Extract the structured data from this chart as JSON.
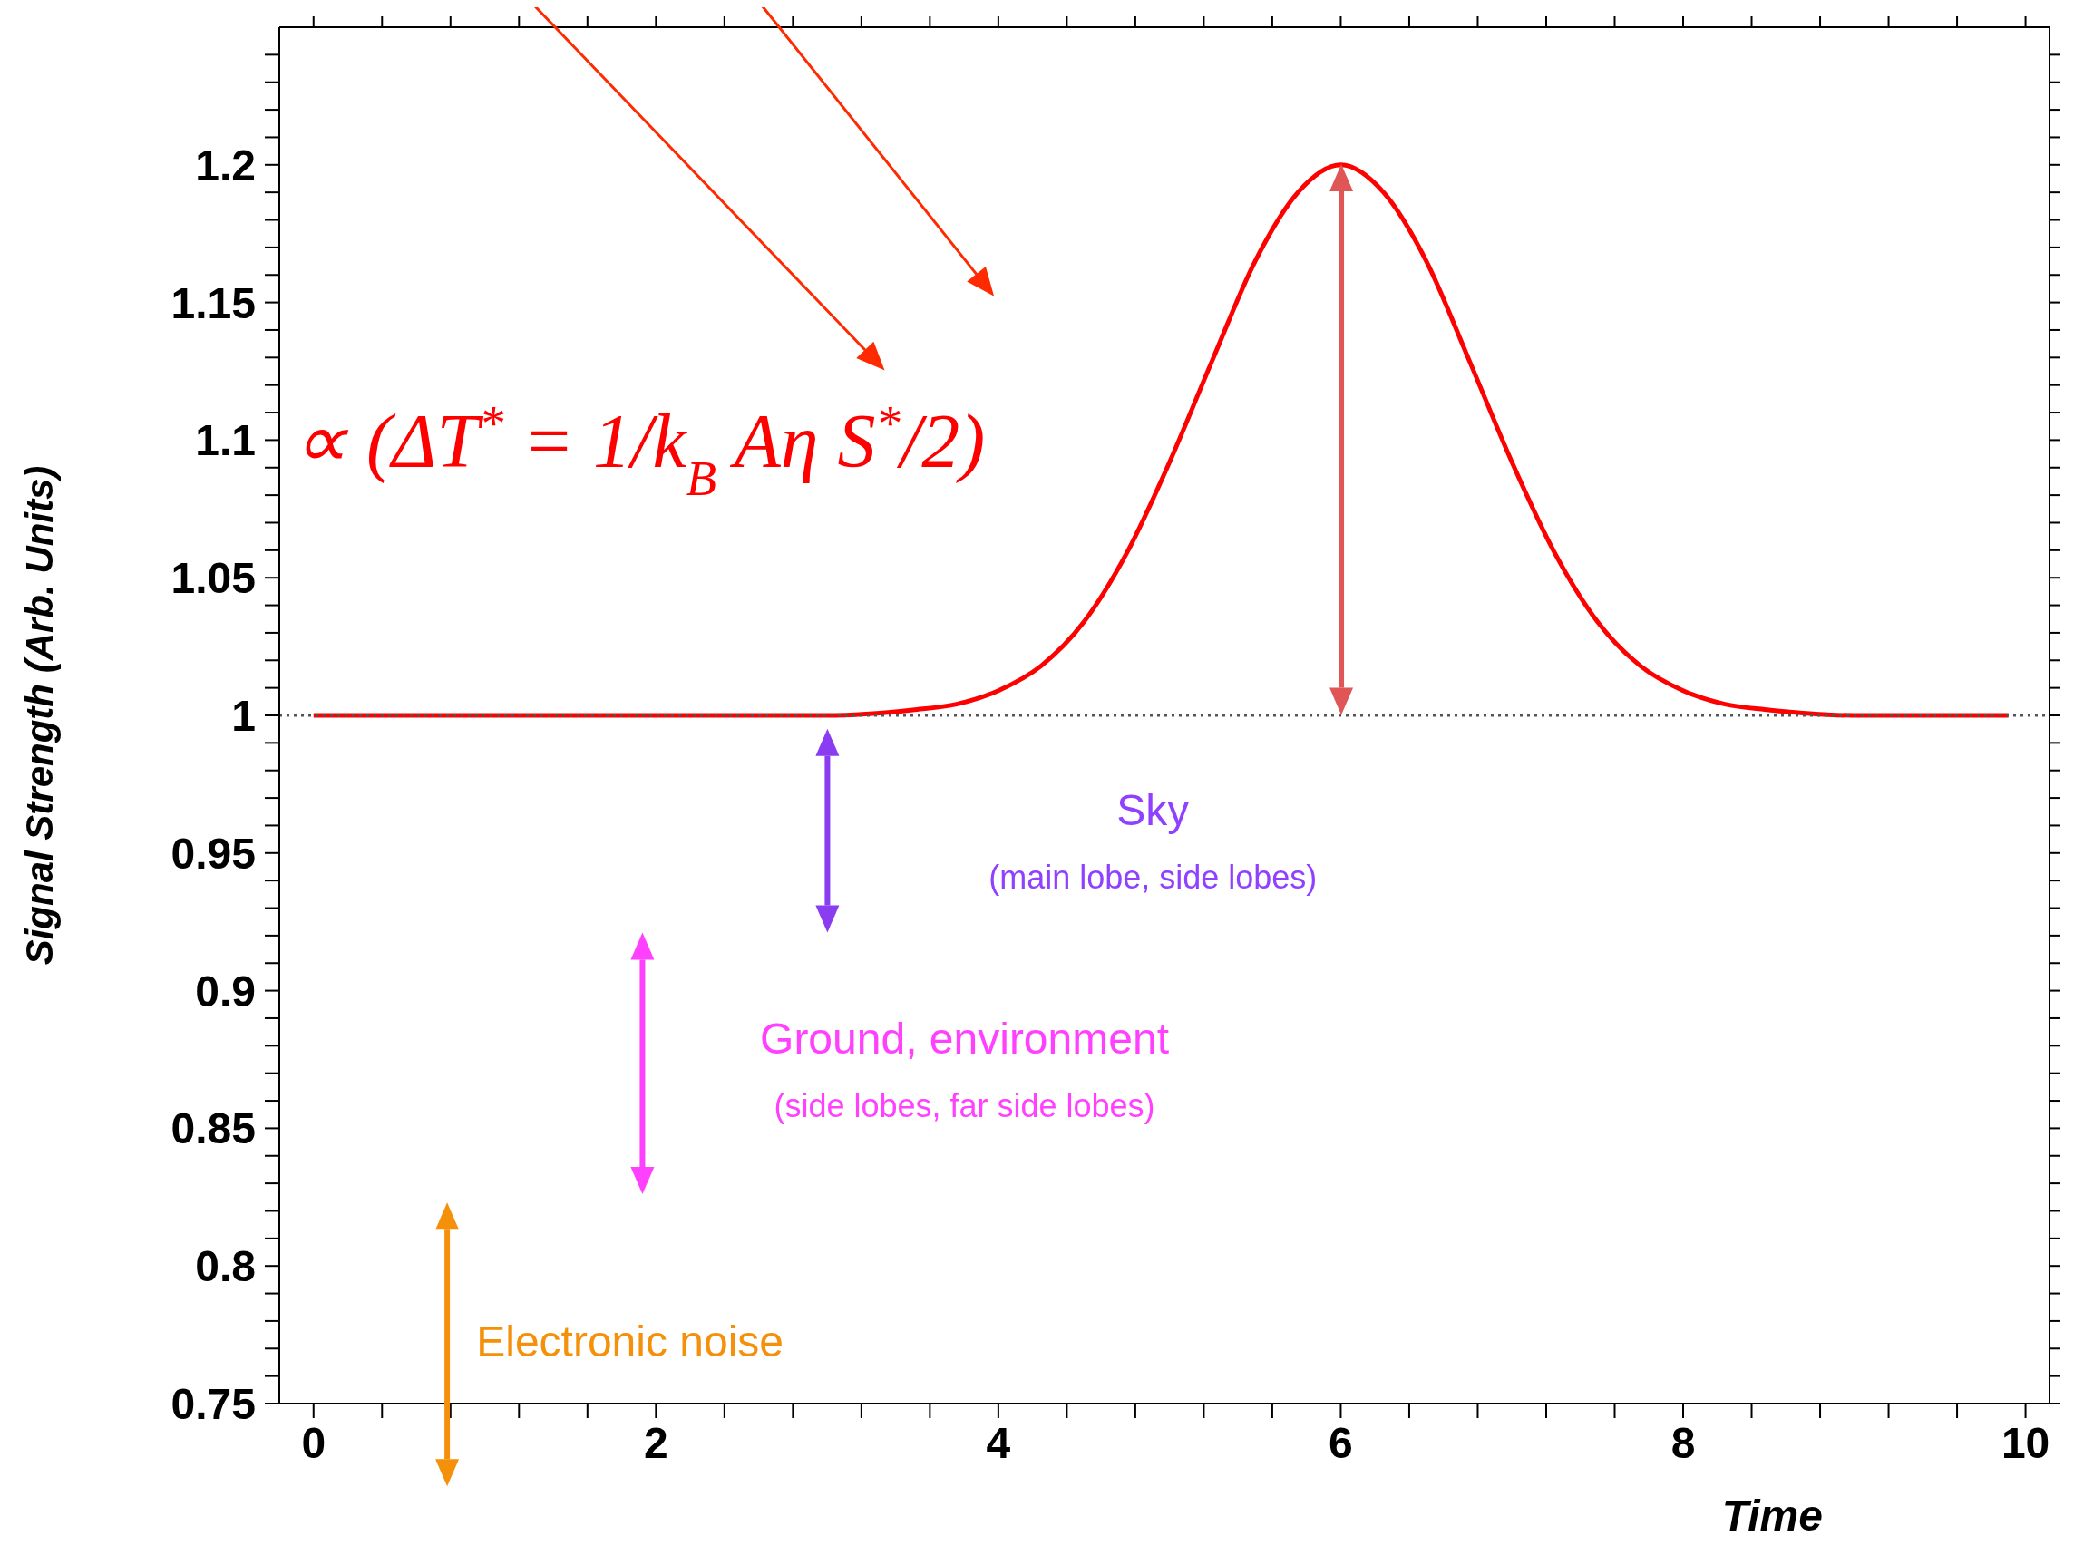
{
  "chart_data": {
    "type": "line",
    "xlabel": "Time",
    "ylabel": "Signal Strength (Arb. Units)",
    "x": [
      0,
      1,
      2,
      3,
      3.5,
      3.75,
      4,
      4.25,
      4.5,
      4.75,
      5,
      5.25,
      5.5,
      5.75,
      6,
      6.25,
      6.5,
      6.75,
      7,
      7.25,
      7.5,
      7.75,
      8,
      8.25,
      8.5,
      9,
      9.9
    ],
    "values": [
      1,
      1,
      1,
      1,
      1.002,
      1.004,
      1.009,
      1.018,
      1.034,
      1.059,
      1.092,
      1.129,
      1.165,
      1.19,
      1.2,
      1.19,
      1.165,
      1.129,
      1.092,
      1.059,
      1.034,
      1.018,
      1.009,
      1.004,
      1.002,
      1,
      1
    ],
    "color": "#ff0000",
    "xlim": [
      -0.2,
      10.14
    ],
    "ylim": [
      0.75,
      1.25
    ],
    "xticks": [
      0,
      {
        "value": 0.4,
        "label": null
      },
      {
        "value": 0.8,
        "label": null
      },
      {
        "value": 1.2,
        "label": null
      },
      {
        "value": 1.6,
        "label": null
      },
      2,
      {
        "value": 2.4,
        "label": null
      },
      {
        "value": 2.8,
        "label": null
      },
      {
        "value": 3.2,
        "label": null
      },
      {
        "value": 3.6,
        "label": null
      },
      4,
      {
        "value": 4.4,
        "label": null
      },
      {
        "value": 4.8,
        "label": null
      },
      {
        "value": 5.2,
        "label": null
      },
      {
        "value": 5.6,
        "label": null
      },
      6,
      {
        "value": 6.4,
        "label": null
      },
      {
        "value": 6.8,
        "label": null
      },
      {
        "value": 7.2,
        "label": null
      },
      {
        "value": 7.6,
        "label": null
      },
      8,
      {
        "value": 8.4,
        "label": null
      },
      {
        "value": 8.8,
        "label": null
      },
      {
        "value": 9.2,
        "label": null
      },
      {
        "value": 9.6,
        "label": null
      },
      10
    ],
    "yticks": [
      0.75,
      {
        "value": 0.76,
        "label": null
      },
      {
        "value": 0.77,
        "label": null
      },
      {
        "value": 0.78,
        "label": null
      },
      {
        "value": 0.79,
        "label": null
      },
      0.8,
      {
        "value": 0.81,
        "label": null
      },
      {
        "value": 0.82,
        "label": null
      },
      {
        "value": 0.83,
        "label": null
      },
      {
        "value": 0.84,
        "label": null
      },
      0.85,
      {
        "value": 0.86,
        "label": null
      },
      {
        "value": 0.87,
        "label": null
      },
      {
        "value": 0.88,
        "label": null
      },
      {
        "value": 0.89,
        "label": null
      },
      0.9,
      {
        "value": 0.91,
        "label": null
      },
      {
        "value": 0.92,
        "label": null
      },
      {
        "value": 0.93,
        "label": null
      },
      {
        "value": 0.94,
        "label": null
      },
      0.95,
      {
        "value": 0.96,
        "label": null
      },
      {
        "value": 0.97,
        "label": null
      },
      {
        "value": 0.98,
        "label": null
      },
      {
        "value": 0.99,
        "label": null
      },
      1,
      {
        "value": 1.01,
        "label": null
      },
      {
        "value": 1.02,
        "label": null
      },
      {
        "value": 1.03,
        "label": null
      },
      {
        "value": 1.04,
        "label": null
      },
      1.05,
      {
        "value": 1.06,
        "label": null
      },
      {
        "value": 1.07,
        "label": null
      },
      {
        "value": 1.08,
        "label": null
      },
      {
        "value": 1.09,
        "label": null
      },
      1.1,
      {
        "value": 1.11,
        "label": null
      },
      {
        "value": 1.12,
        "label": null
      },
      {
        "value": 1.13,
        "label": null
      },
      {
        "value": 1.14,
        "label": null
      },
      1.15,
      {
        "value": 1.16,
        "label": null
      },
      {
        "value": 1.17,
        "label": null
      },
      {
        "value": 1.18,
        "label": null
      },
      {
        "value": 1.19,
        "label": null
      },
      1.2,
      {
        "value": 1.21,
        "label": null
      },
      {
        "value": 1.22,
        "label": null
      },
      {
        "value": 1.23,
        "label": null
      },
      {
        "value": 1.24,
        "label": null
      }
    ],
    "ref_lines": [
      {
        "axis": "y",
        "value": 1,
        "color": "#555555",
        "line_style": "dotted"
      }
    ],
    "annotations": [
      "∝ (ΔT$^{*}$ = 1/k$_{B}$ Aη S$^{*}$/2)",
      "Sky",
      "(main lobe, side lobes)",
      "Ground, environment",
      "(side lobes, far side lobes)",
      "Electronic noise"
    ]
  }
}
